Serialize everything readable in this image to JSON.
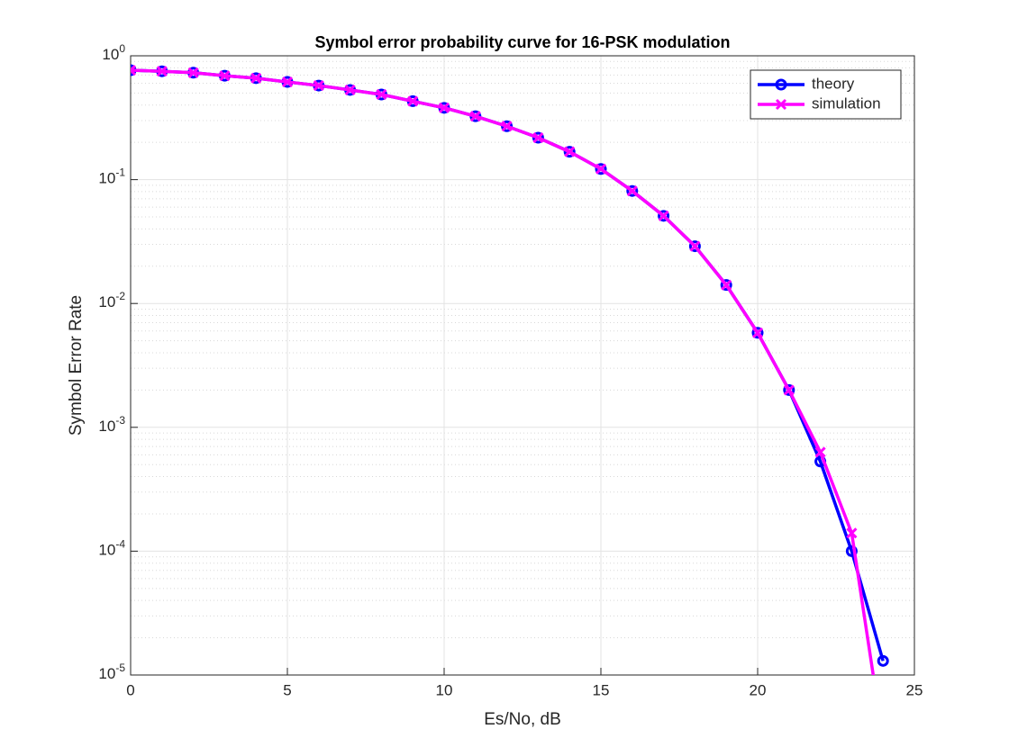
{
  "chart_data": {
    "type": "line",
    "title": "Symbol error probability curve for 16-PSK modulation",
    "x_label": "Es/No, dB",
    "y_label": "Symbol Error Rate",
    "x": [
      0,
      1,
      2,
      3,
      4,
      5,
      6,
      7,
      8,
      9,
      10,
      11,
      12,
      13,
      14,
      15,
      16,
      17,
      18,
      19,
      20,
      21,
      22,
      23,
      24
    ],
    "series": [
      {
        "name": "theory",
        "color": "#0000ff",
        "marker": "o",
        "values": [
          0.765,
          0.75,
          0.73,
          0.69,
          0.66,
          0.615,
          0.575,
          0.53,
          0.487,
          0.43,
          0.38,
          0.325,
          0.27,
          0.218,
          0.168,
          0.122,
          0.081,
          0.051,
          0.029,
          0.0141,
          0.0058,
          0.002,
          0.00053,
          0.0001,
          1.3e-05
        ]
      },
      {
        "name": "simulation",
        "color": "#ff00ff",
        "marker": "x",
        "values": [
          0.765,
          0.75,
          0.73,
          0.69,
          0.66,
          0.615,
          0.575,
          0.53,
          0.487,
          0.43,
          0.38,
          0.325,
          0.27,
          0.218,
          0.168,
          0.122,
          0.081,
          0.051,
          0.029,
          0.0141,
          0.0058,
          0.002,
          0.00063,
          0.00014,
          3e-06
        ]
      }
    ],
    "xlim": [
      0,
      25
    ],
    "xticks": [
      0,
      5,
      10,
      15,
      20,
      25
    ],
    "ylim": [
      1e-05,
      1
    ],
    "ylog": true,
    "yticks": [
      {
        "value": 1e-05,
        "label": "10^-5"
      },
      {
        "value": 0.0001,
        "label": "10^-4"
      },
      {
        "value": 0.001,
        "label": "10^-3"
      },
      {
        "value": 0.01,
        "label": "10^-2"
      },
      {
        "value": 0.1,
        "label": "10^-1"
      },
      {
        "value": 1,
        "label": "10^0"
      }
    ],
    "grid": true,
    "minor_grid": true,
    "legend": "upper right"
  }
}
